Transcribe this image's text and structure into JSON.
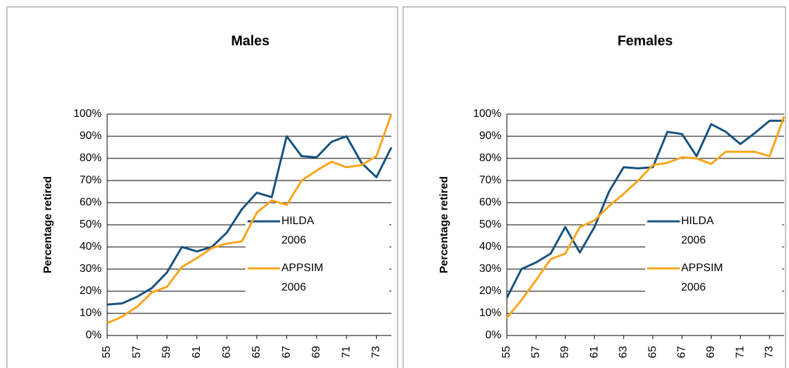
{
  "chart_data": [
    {
      "type": "line",
      "title": "Males",
      "y_label": "Percentage retired",
      "x": [
        55,
        56,
        57,
        58,
        59,
        60,
        61,
        62,
        63,
        64,
        65,
        66,
        67,
        68,
        69,
        70,
        71,
        72,
        73,
        74
      ],
      "xlim": [
        55,
        74
      ],
      "xticks": [
        55,
        57,
        59,
        61,
        63,
        65,
        67,
        69,
        71,
        73
      ],
      "ylim": [
        0,
        100
      ],
      "yticks": [
        {
          "value": 0,
          "label": "0%"
        },
        {
          "value": 10,
          "label": "10%"
        },
        {
          "value": 20,
          "label": "20%"
        },
        {
          "value": 30,
          "label": "30%"
        },
        {
          "value": 40,
          "label": "40%"
        },
        {
          "value": 50,
          "label": "50%"
        },
        {
          "value": 60,
          "label": "60%"
        },
        {
          "value": 70,
          "label": "70%"
        },
        {
          "value": 80,
          "label": "80%"
        },
        {
          "value": 90,
          "label": "90%"
        },
        {
          "value": 100,
          "label": "100%"
        }
      ],
      "grid": true,
      "series": [
        {
          "name": "HILDA 2006",
          "color": "#17517e",
          "values": [
            14,
            14.5,
            17.5,
            21.5,
            28.5,
            40,
            38,
            40,
            46.5,
            57,
            64.5,
            62.5,
            90,
            81,
            80.5,
            87.5,
            90,
            78,
            71.5,
            85
          ]
        },
        {
          "name": "APPSIM 2006",
          "color": "#f9a41b",
          "values": [
            5.5,
            8.5,
            13,
            19.5,
            22,
            31,
            35,
            39.5,
            41.5,
            42.5,
            55.5,
            61,
            59,
            70,
            74.5,
            78.5,
            76,
            77,
            81,
            100
          ]
        }
      ]
    },
    {
      "type": "line",
      "title": "Females",
      "y_label": "Percentage retired",
      "x": [
        55,
        56,
        57,
        58,
        59,
        60,
        61,
        62,
        63,
        64,
        65,
        66,
        67,
        68,
        69,
        70,
        71,
        72,
        73,
        74
      ],
      "xlim": [
        55,
        74
      ],
      "xticks": [
        55,
        57,
        59,
        61,
        63,
        65,
        67,
        69,
        71,
        73
      ],
      "ylim": [
        0,
        100
      ],
      "yticks": [
        {
          "value": 0,
          "label": "0%"
        },
        {
          "value": 10,
          "label": "10%"
        },
        {
          "value": 20,
          "label": "20%"
        },
        {
          "value": 30,
          "label": "30%"
        },
        {
          "value": 40,
          "label": "40%"
        },
        {
          "value": 50,
          "label": "50%"
        },
        {
          "value": 60,
          "label": "60%"
        },
        {
          "value": 70,
          "label": "70%"
        },
        {
          "value": 80,
          "label": "80%"
        },
        {
          "value": 90,
          "label": "90%"
        },
        {
          "value": 100,
          "label": "100%"
        }
      ],
      "grid": true,
      "series": [
        {
          "name": "HILDA 2006",
          "color": "#17517e",
          "values": [
            17,
            30,
            33,
            37,
            49,
            37.5,
            49,
            65,
            76,
            75.5,
            76,
            92,
            91,
            81,
            95.5,
            92,
            86.5,
            91.5,
            97,
            97
          ]
        },
        {
          "name": "APPSIM 2006",
          "color": "#f9a41b",
          "values": [
            8,
            16,
            25,
            34.5,
            37,
            49,
            52,
            58.5,
            64,
            70,
            77,
            78,
            80.5,
            80,
            77.5,
            83,
            83,
            83,
            81,
            99
          ]
        }
      ]
    }
  ]
}
